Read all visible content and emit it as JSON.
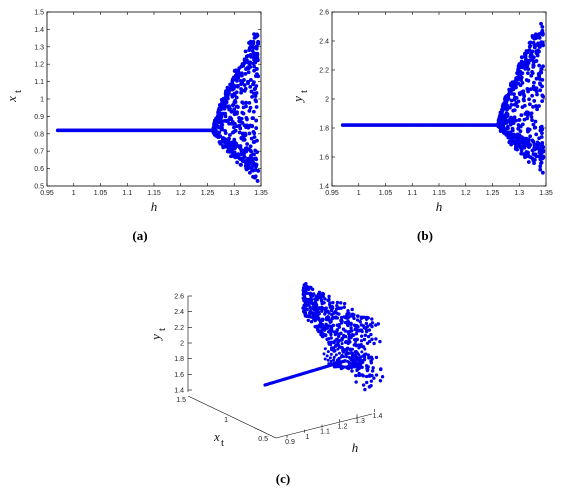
{
  "chart_data": [
    {
      "type": "scatter",
      "panel": "a",
      "caption": "(a)",
      "xlabel": "h",
      "ylabel": "x",
      "ylabel_sub": "t",
      "xlim": [
        0.95,
        1.35
      ],
      "ylim": [
        0.5,
        1.5
      ],
      "xticks": [
        "0.95",
        "1",
        "1.05",
        "1.1",
        "1.15",
        "1.2",
        "1.25",
        "1.3",
        "1.35"
      ],
      "yticks": [
        "0.5",
        "0.6",
        "0.7",
        "0.8",
        "0.9",
        "1",
        "1.1",
        "1.2",
        "1.3",
        "1.4",
        "1.5"
      ],
      "fixed_point": {
        "value": 0.82,
        "h_start": 0.97,
        "h_end": 1.26
      },
      "chaotic_band": {
        "h_start": 1.26,
        "h_end": 1.345,
        "upper_end": 1.42,
        "lower_end": 0.52
      },
      "color": "#0000ee"
    },
    {
      "type": "scatter",
      "panel": "b",
      "caption": "(b)",
      "xlabel": "h",
      "ylabel": "y",
      "ylabel_sub": "t",
      "xlim": [
        0.95,
        1.35
      ],
      "ylim": [
        1.4,
        2.6
      ],
      "xticks": [
        "0.95",
        "1",
        "1.05",
        "1.1",
        "1.15",
        "1.2",
        "1.25",
        "1.3",
        "1.35"
      ],
      "yticks": [
        "1.4",
        "1.6",
        "1.8",
        "2",
        "2.2",
        "2.4",
        "2.6"
      ],
      "fixed_point": {
        "value": 1.82,
        "h_start": 0.97,
        "h_end": 1.26
      },
      "chaotic_band": {
        "h_start": 1.26,
        "h_end": 1.345,
        "upper_end": 2.58,
        "lower_end": 1.48
      },
      "color": "#0000ee"
    },
    {
      "type": "scatter",
      "panel": "c",
      "caption": "(c)",
      "xlabel": "h",
      "ylabel": "x",
      "ylabel_sub": "t",
      "zlabel": "y",
      "zlabel_sub": "t",
      "hticks": [
        "0.9",
        "1",
        "1.1",
        "1.2",
        "1.3",
        "1.4"
      ],
      "xticks": [
        "0.5",
        "1",
        "1.5"
      ],
      "zticks": [
        "1.4",
        "1.6",
        "1.8",
        "2",
        "2.2",
        "2.4",
        "2.6"
      ],
      "color": "#0000ee"
    }
  ]
}
